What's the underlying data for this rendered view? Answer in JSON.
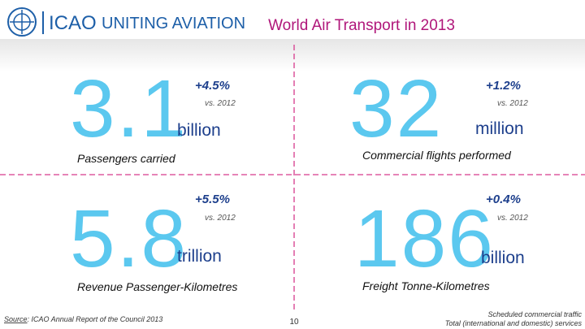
{
  "header": {
    "logo_name": "ICAO",
    "tagline": "UNITING AVIATION",
    "title": "World Air Transport in 2013"
  },
  "stats": [
    {
      "value": "3.1",
      "change": "+4.5%",
      "comparison": "vs. 2012",
      "unit": "billion",
      "label": "Passengers carried"
    },
    {
      "value": "32",
      "change": "+1.2%",
      "comparison": "vs. 2012",
      "unit": "million",
      "label": "Commercial flights performed"
    },
    {
      "value": "5.8",
      "change": "+5.5%",
      "comparison": "vs. 2012",
      "unit": "trillion",
      "label": "Revenue Passenger-Kilometres"
    },
    {
      "value": "186",
      "change": "+0.4%",
      "comparison": "vs. 2012",
      "unit": "billion",
      "label": "Freight Tonne-Kilometres"
    }
  ],
  "footer": {
    "source_label": "Source",
    "source_text": ": ICAO Annual Report of the Council 2013",
    "page_number": "10",
    "note_lines": [
      "Scheduled commercial traffic",
      "Total (international and domestic) services"
    ]
  }
}
